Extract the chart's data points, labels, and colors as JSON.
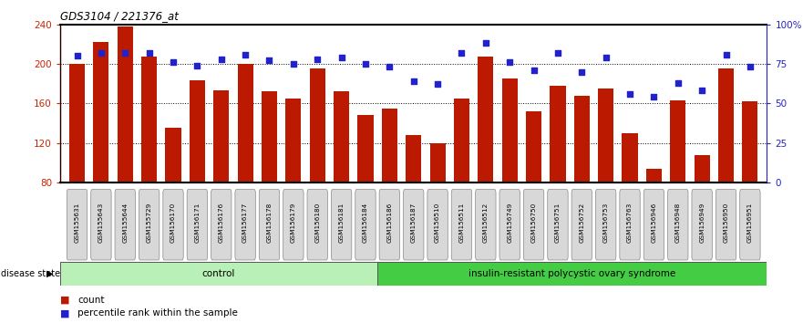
{
  "title": "GDS3104 / 221376_at",
  "samples": [
    "GSM155631",
    "GSM155643",
    "GSM155644",
    "GSM155729",
    "GSM156170",
    "GSM156171",
    "GSM156176",
    "GSM156177",
    "GSM156178",
    "GSM156179",
    "GSM156180",
    "GSM156181",
    "GSM156184",
    "GSM156186",
    "GSM156187",
    "GSM156510",
    "GSM156511",
    "GSM156512",
    "GSM156749",
    "GSM156750",
    "GSM156751",
    "GSM156752",
    "GSM156753",
    "GSM156763",
    "GSM156946",
    "GSM156948",
    "GSM156949",
    "GSM156950",
    "GSM156951"
  ],
  "bar_values": [
    200,
    222,
    238,
    207,
    135,
    183,
    173,
    200,
    172,
    165,
    195,
    172,
    148,
    155,
    128,
    120,
    165,
    207,
    185,
    152,
    178,
    168,
    175,
    130,
    94,
    163,
    108,
    195,
    162
  ],
  "percentile_values": [
    80,
    82,
    82,
    82,
    76,
    74,
    78,
    81,
    77,
    75,
    78,
    79,
    75,
    73,
    64,
    62,
    82,
    88,
    76,
    71,
    82,
    70,
    79,
    56,
    54,
    63,
    58,
    81,
    73
  ],
  "control_count": 13,
  "bar_color": "#bb1a00",
  "dot_color": "#2222cc",
  "ymin": 80,
  "ymax": 240,
  "yticks_left": [
    80,
    120,
    160,
    200,
    240
  ],
  "yticks_right": [
    0,
    25,
    50,
    75,
    100
  ],
  "legend_count_label": "count",
  "legend_pct_label": "percentile rank within the sample",
  "group1_label": "control",
  "group2_label": "insulin-resistant polycystic ovary syndrome",
  "disease_state_label": "disease state",
  "tick_label_color": "#cc2200",
  "right_tick_color": "#2222cc",
  "ctrl_color": "#b8f0b8",
  "disease_color": "#44cc44"
}
